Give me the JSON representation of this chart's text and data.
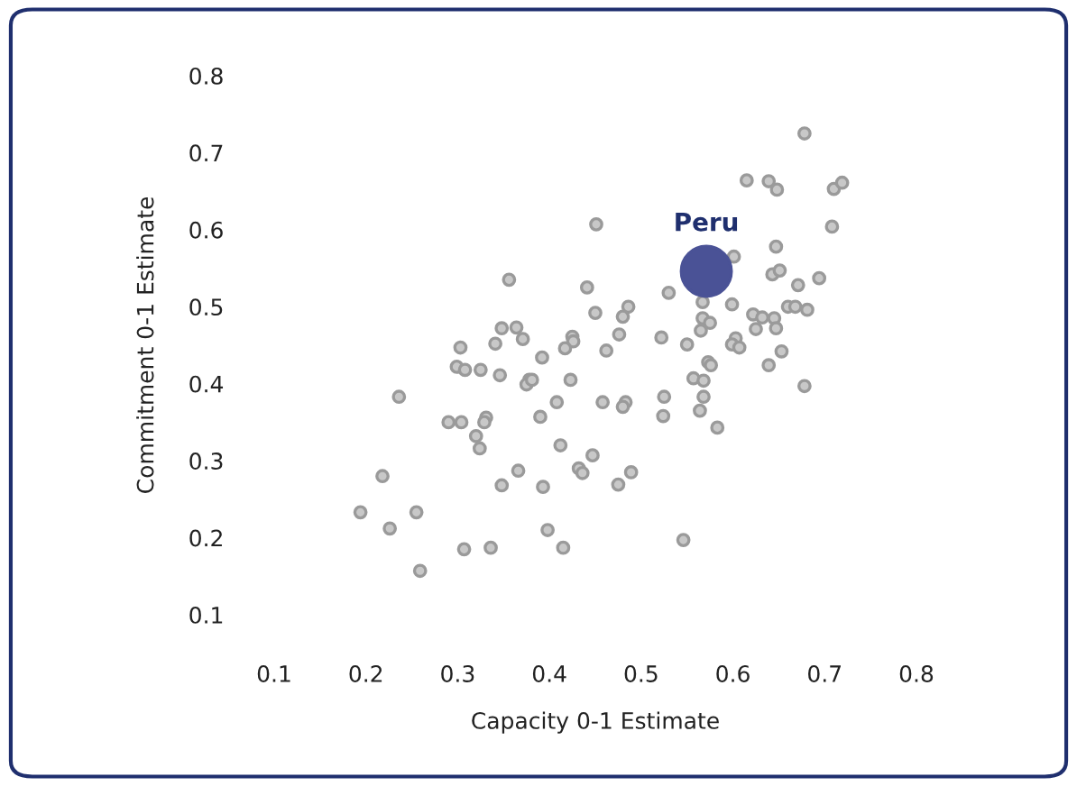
{
  "chart_data": {
    "type": "scatter",
    "xlabel": "Capacity 0-1 Estimate",
    "ylabel": "Commitment 0-1 Estimate",
    "xlim": [
      0.1,
      0.8
    ],
    "ylim": [
      0.1,
      0.8
    ],
    "xticks": [
      0.1,
      0.2,
      0.3,
      0.4,
      0.5,
      0.6,
      0.7,
      0.8
    ],
    "yticks": [
      0.1,
      0.2,
      0.3,
      0.4,
      0.5,
      0.6,
      0.7,
      0.8
    ],
    "grid": false,
    "legend": false,
    "marker": "circle",
    "series": [
      {
        "color": "#c8c8c8",
        "x": [
          0.451,
          0.356,
          0.441,
          0.45,
          0.486,
          0.48,
          0.348,
          0.364,
          0.371,
          0.341,
          0.303,
          0.425,
          0.426,
          0.417,
          0.476,
          0.462,
          0.392,
          0.299,
          0.308,
          0.325,
          0.346,
          0.378,
          0.375,
          0.381,
          0.423,
          0.236,
          0.408,
          0.458,
          0.483,
          0.48,
          0.29,
          0.304,
          0.331,
          0.329,
          0.39,
          0.32,
          0.324,
          0.412,
          0.447,
          0.432,
          0.436,
          0.489,
          0.475,
          0.366,
          0.348,
          0.393,
          0.218,
          0.194,
          0.255,
          0.226,
          0.398,
          0.307,
          0.336,
          0.415,
          0.259,
          0.678,
          0.615,
          0.639,
          0.648,
          0.71,
          0.719,
          0.708,
          0.647,
          0.601,
          0.643,
          0.651,
          0.671,
          0.694,
          0.53,
          0.567,
          0.599,
          0.66,
          0.668,
          0.681,
          0.622,
          0.632,
          0.645,
          0.567,
          0.575,
          0.565,
          0.625,
          0.647,
          0.522,
          0.55,
          0.603,
          0.599,
          0.607,
          0.653,
          0.639,
          0.573,
          0.576,
          0.557,
          0.568,
          0.678,
          0.568,
          0.525,
          0.524,
          0.564,
          0.583,
          0.546
        ],
        "values": [
          0.607,
          0.535,
          0.525,
          0.492,
          0.5,
          0.487,
          0.472,
          0.473,
          0.458,
          0.452,
          0.447,
          0.461,
          0.455,
          0.446,
          0.464,
          0.443,
          0.434,
          0.422,
          0.418,
          0.418,
          0.411,
          0.405,
          0.399,
          0.405,
          0.405,
          0.383,
          0.376,
          0.376,
          0.376,
          0.37,
          0.35,
          0.35,
          0.356,
          0.35,
          0.357,
          0.332,
          0.316,
          0.32,
          0.307,
          0.29,
          0.284,
          0.285,
          0.269,
          0.287,
          0.268,
          0.266,
          0.28,
          0.233,
          0.233,
          0.212,
          0.21,
          0.185,
          0.187,
          0.187,
          0.157,
          0.725,
          0.664,
          0.663,
          0.652,
          0.653,
          0.661,
          0.604,
          0.578,
          0.565,
          0.542,
          0.547,
          0.528,
          0.537,
          0.518,
          0.506,
          0.503,
          0.5,
          0.5,
          0.496,
          0.49,
          0.486,
          0.485,
          0.485,
          0.479,
          0.469,
          0.471,
          0.472,
          0.46,
          0.451,
          0.459,
          0.451,
          0.447,
          0.442,
          0.424,
          0.428,
          0.424,
          0.407,
          0.404,
          0.397,
          0.383,
          0.383,
          0.358,
          0.365,
          0.343,
          0.197
        ]
      },
      {
        "name": "Peru",
        "color": "#4a5296",
        "x": [
          0.571
        ],
        "values": [
          0.546
        ]
      }
    ]
  }
}
